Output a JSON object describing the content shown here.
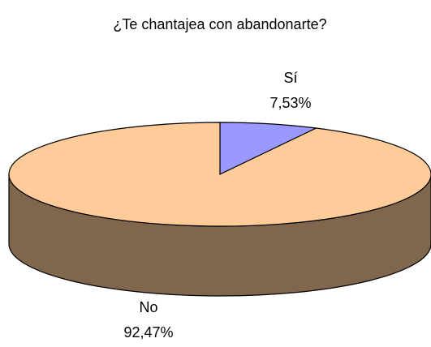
{
  "chart_data": {
    "type": "pie3d",
    "title": "¿Te chantajea con abandonarte?",
    "categories": [
      "Sí",
      "No"
    ],
    "values": [
      7.53,
      92.47
    ],
    "value_labels": [
      "7,53%",
      "92,47%"
    ],
    "colors": [
      "#9999ff",
      "#ffcc99"
    ]
  }
}
